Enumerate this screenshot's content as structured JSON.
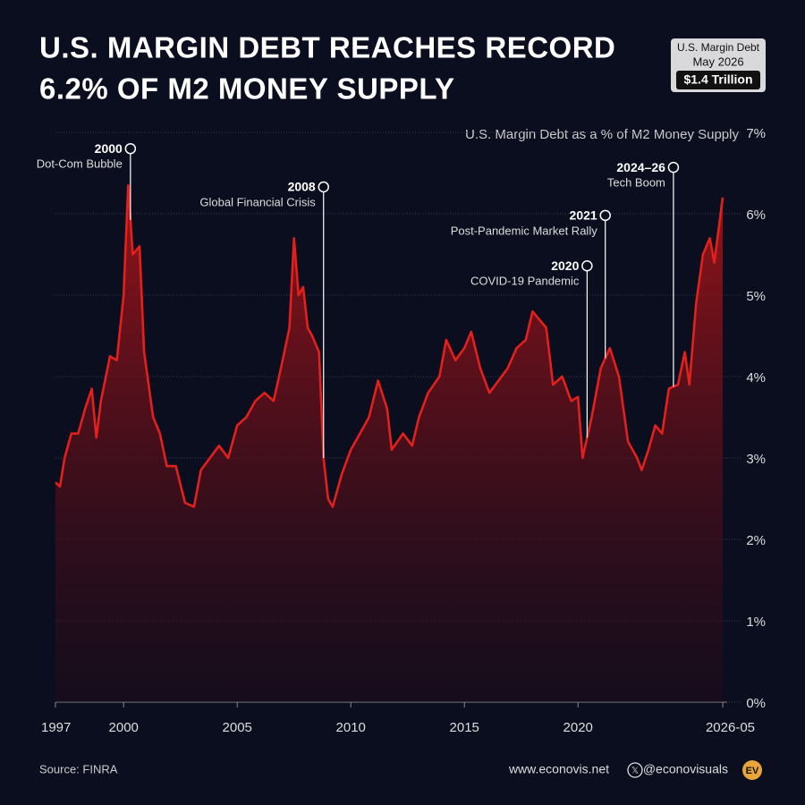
{
  "chart_data": {
    "type": "area",
    "title": [
      "U.S. MARGIN DEBT REACHES RECORD",
      "6.2% OF M2 MONEY SUPPLY"
    ],
    "subtitle": "U.S. Margin Debt as a % of M2 Money Supply",
    "badge": [
      "U.S. Margin Debt",
      "May 2026",
      "$1.4 Trillion"
    ],
    "source": "Source: FINRA",
    "website": "www.econovis.net",
    "handle": "@econovisuals",
    "logo": "EV",
    "color": "#e3201b",
    "x": [
      1997.0,
      1997.2,
      1997.4,
      1997.7,
      1998.0,
      1998.3,
      1998.6,
      1998.8,
      1999.0,
      1999.4,
      1999.7,
      2000.0,
      2000.2,
      2000.4,
      2000.7,
      2000.9,
      2001.3,
      2001.6,
      2001.9,
      2002.3,
      2002.7,
      2003.1,
      2003.4,
      2003.8,
      2004.2,
      2004.6,
      2005.0,
      2005.4,
      2005.8,
      2006.2,
      2006.6,
      2007.0,
      2007.3,
      2007.5,
      2007.7,
      2007.9,
      2008.1,
      2008.3,
      2008.6,
      2008.8,
      2009.0,
      2009.2,
      2009.6,
      2010.0,
      2010.4,
      2010.8,
      2011.2,
      2011.6,
      2011.8,
      2012.3,
      2012.7,
      2013.0,
      2013.4,
      2013.9,
      2014.2,
      2014.6,
      2015.0,
      2015.3,
      2015.7,
      2016.1,
      2016.5,
      2016.9,
      2017.3,
      2017.7,
      2018.0,
      2018.3,
      2018.6,
      2018.9,
      2019.3,
      2019.7,
      2020.0,
      2020.2,
      2020.6,
      2021.0,
      2021.4,
      2021.8,
      2022.2,
      2022.6,
      2022.8,
      2023.1,
      2023.4,
      2023.7,
      2024.0,
      2024.4,
      2024.7,
      2024.9,
      2025.2,
      2025.5,
      2025.8,
      2026.0,
      2026.37
    ],
    "values": [
      2.7,
      2.65,
      3.0,
      3.3,
      3.3,
      3.6,
      3.85,
      3.25,
      3.7,
      4.25,
      4.2,
      5.0,
      6.35,
      5.5,
      5.6,
      4.3,
      3.5,
      3.3,
      2.9,
      2.9,
      2.45,
      2.4,
      2.85,
      3.0,
      3.15,
      3.0,
      3.4,
      3.5,
      3.7,
      3.8,
      3.7,
      4.2,
      4.6,
      5.7,
      5.0,
      5.1,
      4.6,
      4.5,
      4.3,
      3.0,
      2.5,
      2.4,
      2.8,
      3.1,
      3.3,
      3.5,
      3.95,
      3.6,
      3.1,
      3.3,
      3.15,
      3.5,
      3.8,
      4.0,
      4.45,
      4.2,
      4.35,
      4.55,
      4.1,
      3.8,
      3.95,
      4.1,
      4.35,
      4.45,
      4.8,
      4.7,
      4.6,
      3.9,
      4.0,
      3.7,
      3.75,
      3.0,
      3.5,
      4.1,
      4.35,
      4.0,
      3.2,
      3.0,
      2.85,
      3.1,
      3.4,
      3.3,
      3.85,
      3.9,
      4.3,
      3.9,
      4.9,
      5.5,
      5.7,
      5.4,
      6.2
    ],
    "xlim": [
      1997,
      2026.4
    ],
    "xticks": [
      1997,
      2000,
      2005,
      2010,
      2015,
      2020,
      {
        "value": 2026.37,
        "label": "2026-05"
      }
    ],
    "ylim": [
      0,
      7
    ],
    "yticks": [
      {
        "value": 0,
        "label": "0%"
      },
      {
        "value": 1,
        "label": "1%"
      },
      {
        "value": 2,
        "label": "2%"
      },
      {
        "value": 3,
        "label": "3%"
      },
      {
        "value": 4,
        "label": "4%"
      },
      {
        "value": 5,
        "label": "5%"
      },
      {
        "value": 6,
        "label": "6%"
      },
      {
        "value": 7,
        "label": "7%"
      }
    ],
    "grid": true,
    "annotations": [
      {
        "x": 2000.3,
        "y": 6.8,
        "label": "2000",
        "text": "Dot-Com Bubble"
      },
      {
        "x": 2008.8,
        "y": 6.33,
        "label": "2008",
        "text": "Global Financial Crisis"
      },
      {
        "x": 2020.4,
        "y": 5.36,
        "label": "2020",
        "text": "COVID-19 Pandemic"
      },
      {
        "x": 2021.2,
        "y": 5.98,
        "label": "2021",
        "text": "Post-Pandemic Market Rally"
      },
      {
        "x": 2024.2,
        "y": 6.57,
        "label": "2024–26",
        "text": "Tech Boom"
      }
    ]
  }
}
